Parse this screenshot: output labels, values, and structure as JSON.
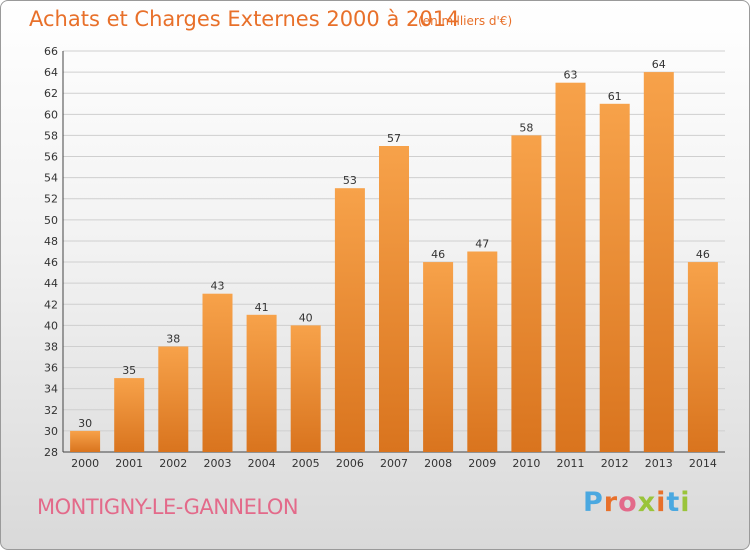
{
  "header": {
    "title": "Achats et Charges Externes 2000 à 2014",
    "subtitle": "(en milliers d'€)"
  },
  "footer": {
    "city": "MONTIGNY-LE-GANNELON",
    "logo_text": "Proxiti",
    "logo_colors": [
      "#4aa8e0",
      "#e8702a",
      "#e36a8a",
      "#9ac43a",
      "#e8702a",
      "#4aa8e0",
      "#9ac43a"
    ]
  },
  "colors": {
    "bar_light": "#f7a24a",
    "bar_dark": "#d9741e",
    "grid": "#cfcfcf",
    "text_accent": "#e8702a"
  },
  "chart_data": {
    "type": "bar",
    "title": "Achats et Charges Externes 2000 à 2014",
    "subtitle": "(en milliers d'€)",
    "categories": [
      "2000",
      "2001",
      "2002",
      "2003",
      "2004",
      "2005",
      "2006",
      "2007",
      "2008",
      "2009",
      "2010",
      "2011",
      "2012",
      "2013",
      "2014"
    ],
    "values": [
      30,
      35,
      38,
      43,
      41,
      40,
      53,
      57,
      46,
      47,
      58,
      63,
      61,
      64,
      46
    ],
    "ylim": [
      28,
      66
    ],
    "yticks": [
      28,
      30,
      32,
      34,
      36,
      38,
      40,
      42,
      44,
      46,
      48,
      50,
      52,
      54,
      56,
      58,
      60,
      62,
      64,
      66
    ],
    "grid": true,
    "legend": "none"
  }
}
